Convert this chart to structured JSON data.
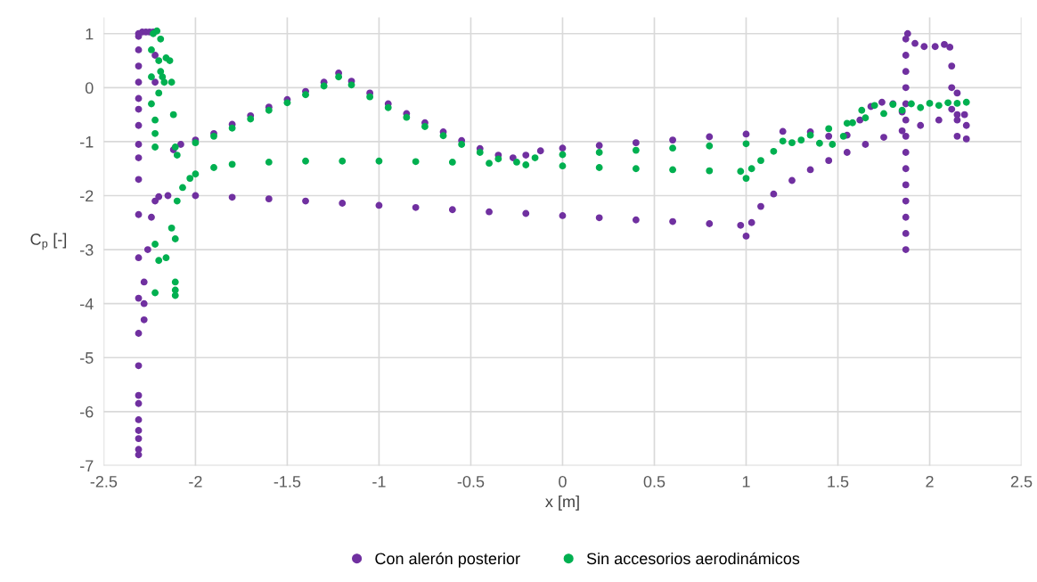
{
  "chart_data": {
    "type": "scatter",
    "xlabel": "x [m]",
    "ylabel": "C$_{p}$ [-]",
    "xlim": [
      -2.5,
      2.5
    ],
    "xticks": [
      -2.5,
      -2,
      -1.5,
      -1,
      -0.5,
      0,
      0.5,
      1,
      1.5,
      2,
      2.5
    ],
    "ylim": [
      -7,
      1.3
    ],
    "yticks": [
      -7,
      -6,
      -5,
      -4,
      -3,
      -2,
      -1,
      0,
      1
    ],
    "grid": true,
    "legend": "bottom",
    "marker": "circle",
    "series": [
      {
        "name": "Con alerón posterior",
        "color": "#7030a0",
        "x": [
          -2.31,
          -2.31,
          -2.31,
          -2.31,
          -2.31,
          -2.31,
          -2.31,
          -2.31,
          -2.31,
          -2.31,
          -2.31,
          -2.31,
          -2.31,
          -2.31,
          -2.31,
          -2.31,
          -2.31,
          -2.31,
          -2.31,
          -2.31,
          -2.31,
          -2.31,
          -2.31,
          -2.28,
          -2.28,
          -2.28,
          -2.26,
          -2.24,
          -2.22,
          -2.2,
          -2.29,
          -2.27,
          -2.25,
          -2.23,
          -2.22,
          -2.22,
          -2.12,
          -2.08,
          -2.0,
          -1.9,
          -1.8,
          -1.7,
          -1.6,
          -1.5,
          -1.4,
          -1.3,
          -1.22,
          -1.15,
          -1.05,
          -0.95,
          -0.85,
          -0.75,
          -0.65,
          -0.55,
          -0.45,
          -0.35,
          -0.27,
          -0.2,
          -0.12,
          0,
          0.2,
          0.4,
          0.6,
          0.8,
          1.0,
          1.2,
          1.35,
          1.45,
          1.55,
          1.62,
          1.68,
          1.74,
          1.8,
          1.85,
          -2.15,
          -2.0,
          -1.8,
          -1.6,
          -1.4,
          -1.2,
          -1.0,
          -0.8,
          -0.6,
          -0.4,
          -0.2,
          0,
          0.2,
          0.4,
          0.6,
          0.8,
          0.97,
          1.0,
          1.03,
          1.08,
          1.15,
          1.25,
          1.35,
          1.45,
          1.55,
          1.65,
          1.75,
          1.85,
          1.95,
          2.05,
          2.15,
          1.87,
          1.87,
          1.87,
          1.87,
          1.87,
          1.87,
          1.87,
          1.87,
          1.87,
          1.87,
          1.87,
          1.87,
          1.87,
          1.87,
          1.88,
          1.92,
          1.97,
          2.03,
          2.08,
          2.11,
          2.12,
          2.12,
          2.12,
          2.15,
          2.15,
          2.15,
          2.19,
          2.2,
          2.2
        ],
        "values": [
          -6.8,
          -6.7,
          -6.5,
          -6.35,
          -6.15,
          -5.85,
          -5.7,
          -5.15,
          -4.55,
          -3.9,
          -3.15,
          -2.35,
          -1.7,
          -1.3,
          -1.05,
          -0.7,
          -0.4,
          -0.2,
          0.1,
          0.4,
          0.7,
          0.95,
          1.0,
          -4.3,
          -4.0,
          -3.6,
          -3.0,
          -2.4,
          -2.1,
          -2.02,
          1.03,
          1.03,
          1.03,
          1.03,
          0.6,
          0.1,
          -1.15,
          -1.05,
          -0.97,
          -0.85,
          -0.68,
          -0.52,
          -0.36,
          -0.22,
          -0.07,
          0.1,
          0.27,
          0.12,
          -0.1,
          -0.3,
          -0.48,
          -0.65,
          -0.82,
          -0.98,
          -1.13,
          -1.25,
          -1.3,
          -1.25,
          -1.17,
          -1.12,
          -1.07,
          -1.02,
          -0.97,
          -0.91,
          -0.86,
          -0.81,
          -0.82,
          -0.9,
          -0.88,
          -0.6,
          -0.35,
          -0.27,
          -0.3,
          -0.45,
          -2.0,
          -2.0,
          -2.03,
          -2.06,
          -2.1,
          -2.14,
          -2.18,
          -2.22,
          -2.26,
          -2.3,
          -2.33,
          -2.37,
          -2.41,
          -2.45,
          -2.48,
          -2.52,
          -2.55,
          -2.75,
          -2.5,
          -2.2,
          -1.97,
          -1.72,
          -1.52,
          -1.35,
          -1.2,
          -1.05,
          -0.92,
          -0.8,
          -0.7,
          -0.6,
          -0.5,
          -3.0,
          -2.7,
          -2.4,
          -2.1,
          -1.8,
          -1.5,
          -1.2,
          -0.9,
          -0.6,
          -0.3,
          0.0,
          0.3,
          0.6,
          0.9,
          1.0,
          0.82,
          0.76,
          0.76,
          0.8,
          0.75,
          0.4,
          0.0,
          -0.4,
          -0.1,
          -0.6,
          -0.9,
          -0.5,
          -0.7,
          -0.95
        ]
      },
      {
        "name": "Sin accesorios aerodinámicos",
        "color": "#00b050",
        "x": [
          -2.24,
          -2.24,
          -2.24,
          -2.23,
          -2.21,
          -2.2,
          -2.2,
          -2.19,
          -2.19,
          -2.18,
          -2.17,
          -2.16,
          -2.14,
          -2.13,
          -2.12,
          -2.11,
          -2.22,
          -2.22,
          -2.22,
          -2.22,
          -2.22,
          -2.11,
          -2.11,
          -2.11,
          -2.11,
          -2.1,
          -2.0,
          -1.9,
          -1.8,
          -1.7,
          -1.6,
          -1.5,
          -1.4,
          -1.3,
          -1.22,
          -1.15,
          -1.05,
          -0.95,
          -0.85,
          -0.75,
          -0.65,
          -0.55,
          -0.45,
          -0.35,
          -0.25,
          -0.15,
          0,
          0.2,
          0.4,
          0.6,
          0.8,
          1.0,
          1.2,
          1.3,
          1.4,
          1.47,
          1.53,
          1.58,
          1.63,
          1.7,
          1.8,
          1.9,
          2.0,
          2.1,
          2.2,
          -2.2,
          -2.16,
          -2.13,
          -2.1,
          -2.07,
          -2.03,
          -2.0,
          -1.9,
          -1.8,
          -1.6,
          -1.4,
          -1.2,
          -1.0,
          -0.8,
          -0.6,
          -0.4,
          -0.2,
          0,
          0.2,
          0.4,
          0.6,
          0.8,
          0.97,
          1.0,
          1.03,
          1.08,
          1.15,
          1.25,
          1.35,
          1.45,
          1.55,
          1.65,
          1.75,
          1.85,
          1.95,
          2.05,
          2.15
        ],
        "values": [
          -0.3,
          0.2,
          0.7,
          1.0,
          1.05,
          0.5,
          -0.1,
          0.3,
          0.9,
          0.2,
          0.1,
          0.55,
          0.5,
          0.1,
          -0.5,
          -1.1,
          -0.6,
          -0.85,
          -1.1,
          -2.9,
          -3.8,
          -3.6,
          -3.75,
          -3.85,
          -2.8,
          -1.25,
          -1.02,
          -0.9,
          -0.75,
          -0.58,
          -0.42,
          -0.28,
          -0.13,
          0.03,
          0.2,
          0.05,
          -0.17,
          -0.37,
          -0.55,
          -0.72,
          -0.89,
          -1.05,
          -1.2,
          -1.32,
          -1.38,
          -1.3,
          -1.24,
          -1.2,
          -1.16,
          -1.12,
          -1.08,
          -1.04,
          -0.99,
          -0.97,
          -1.03,
          -1.05,
          -0.9,
          -0.65,
          -0.42,
          -0.33,
          -0.31,
          -0.3,
          -0.29,
          -0.28,
          -0.27,
          -3.2,
          -3.15,
          -2.6,
          -2.1,
          -1.85,
          -1.68,
          -1.6,
          -1.48,
          -1.42,
          -1.38,
          -1.36,
          -1.36,
          -1.36,
          -1.37,
          -1.38,
          -1.4,
          -1.43,
          -1.45,
          -1.48,
          -1.5,
          -1.52,
          -1.54,
          -1.55,
          -1.68,
          -1.5,
          -1.35,
          -1.18,
          -1.02,
          -0.88,
          -0.76,
          -0.66,
          -0.56,
          -0.48,
          -0.42,
          -0.37,
          -0.33,
          -0.29
        ]
      }
    ]
  }
}
